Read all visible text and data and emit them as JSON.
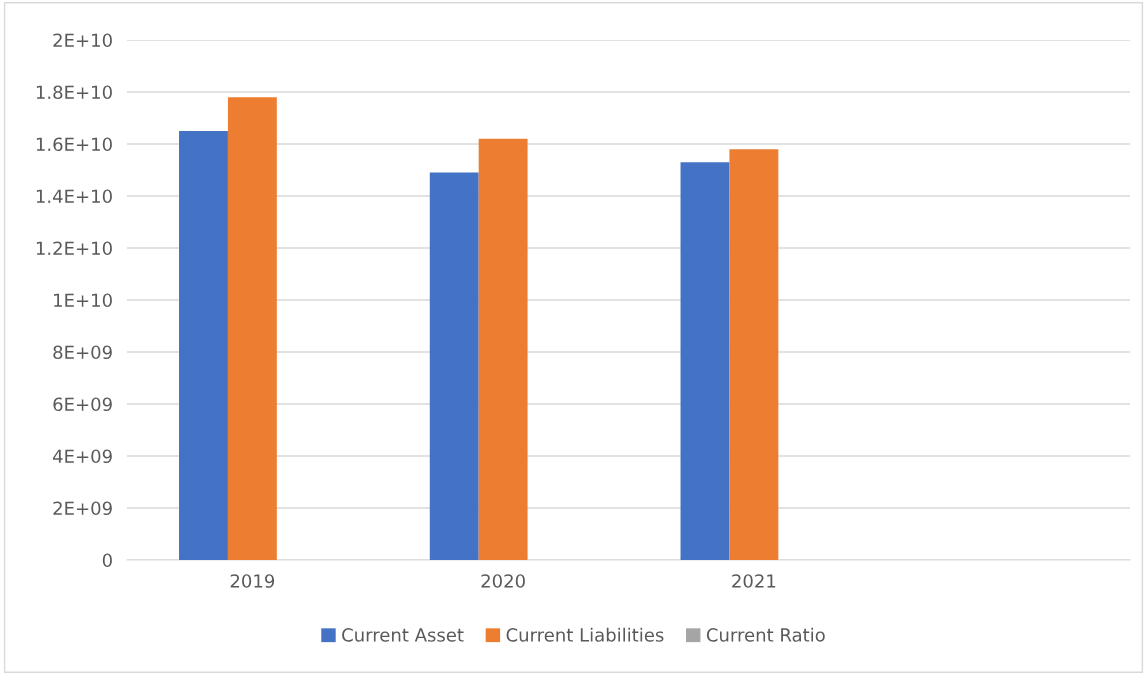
{
  "chart_data": {
    "type": "bar",
    "categories": [
      "2019",
      "2020",
      "2021",
      null
    ],
    "series": [
      {
        "name": "Current Asset",
        "color": "#4472c4",
        "values": [
          16500000000.0,
          14900000000.0,
          15300000000.0,
          null
        ]
      },
      {
        "name": "Current Liabilities",
        "color": "#ed7d31",
        "values": [
          17800000000.0,
          16200000000.0,
          15800000000.0,
          null
        ]
      },
      {
        "name": "Current Ratio",
        "color": "#a5a5a5",
        "values": [
          null,
          null,
          null,
          null
        ]
      }
    ],
    "ylim": [
      0,
      20000000000.0
    ],
    "yticks": [
      {
        "value": 0,
        "label": "0"
      },
      {
        "value": 2000000000.0,
        "label": "2E+09"
      },
      {
        "value": 4000000000.0,
        "label": "4E+09"
      },
      {
        "value": 6000000000.0,
        "label": "6E+09"
      },
      {
        "value": 8000000000.0,
        "label": "8E+09"
      },
      {
        "value": 10000000000.0,
        "label": "1E+10"
      },
      {
        "value": 12000000000.0,
        "label": "1.2E+10"
      },
      {
        "value": 14000000000.0,
        "label": "1.4E+10"
      },
      {
        "value": 16000000000.0,
        "label": "1.6E+10"
      },
      {
        "value": 18000000000.0,
        "label": "1.8E+10"
      },
      {
        "value": 20000000000.0,
        "label": "2E+10"
      }
    ],
    "grid": "y",
    "legend": "bottom"
  }
}
